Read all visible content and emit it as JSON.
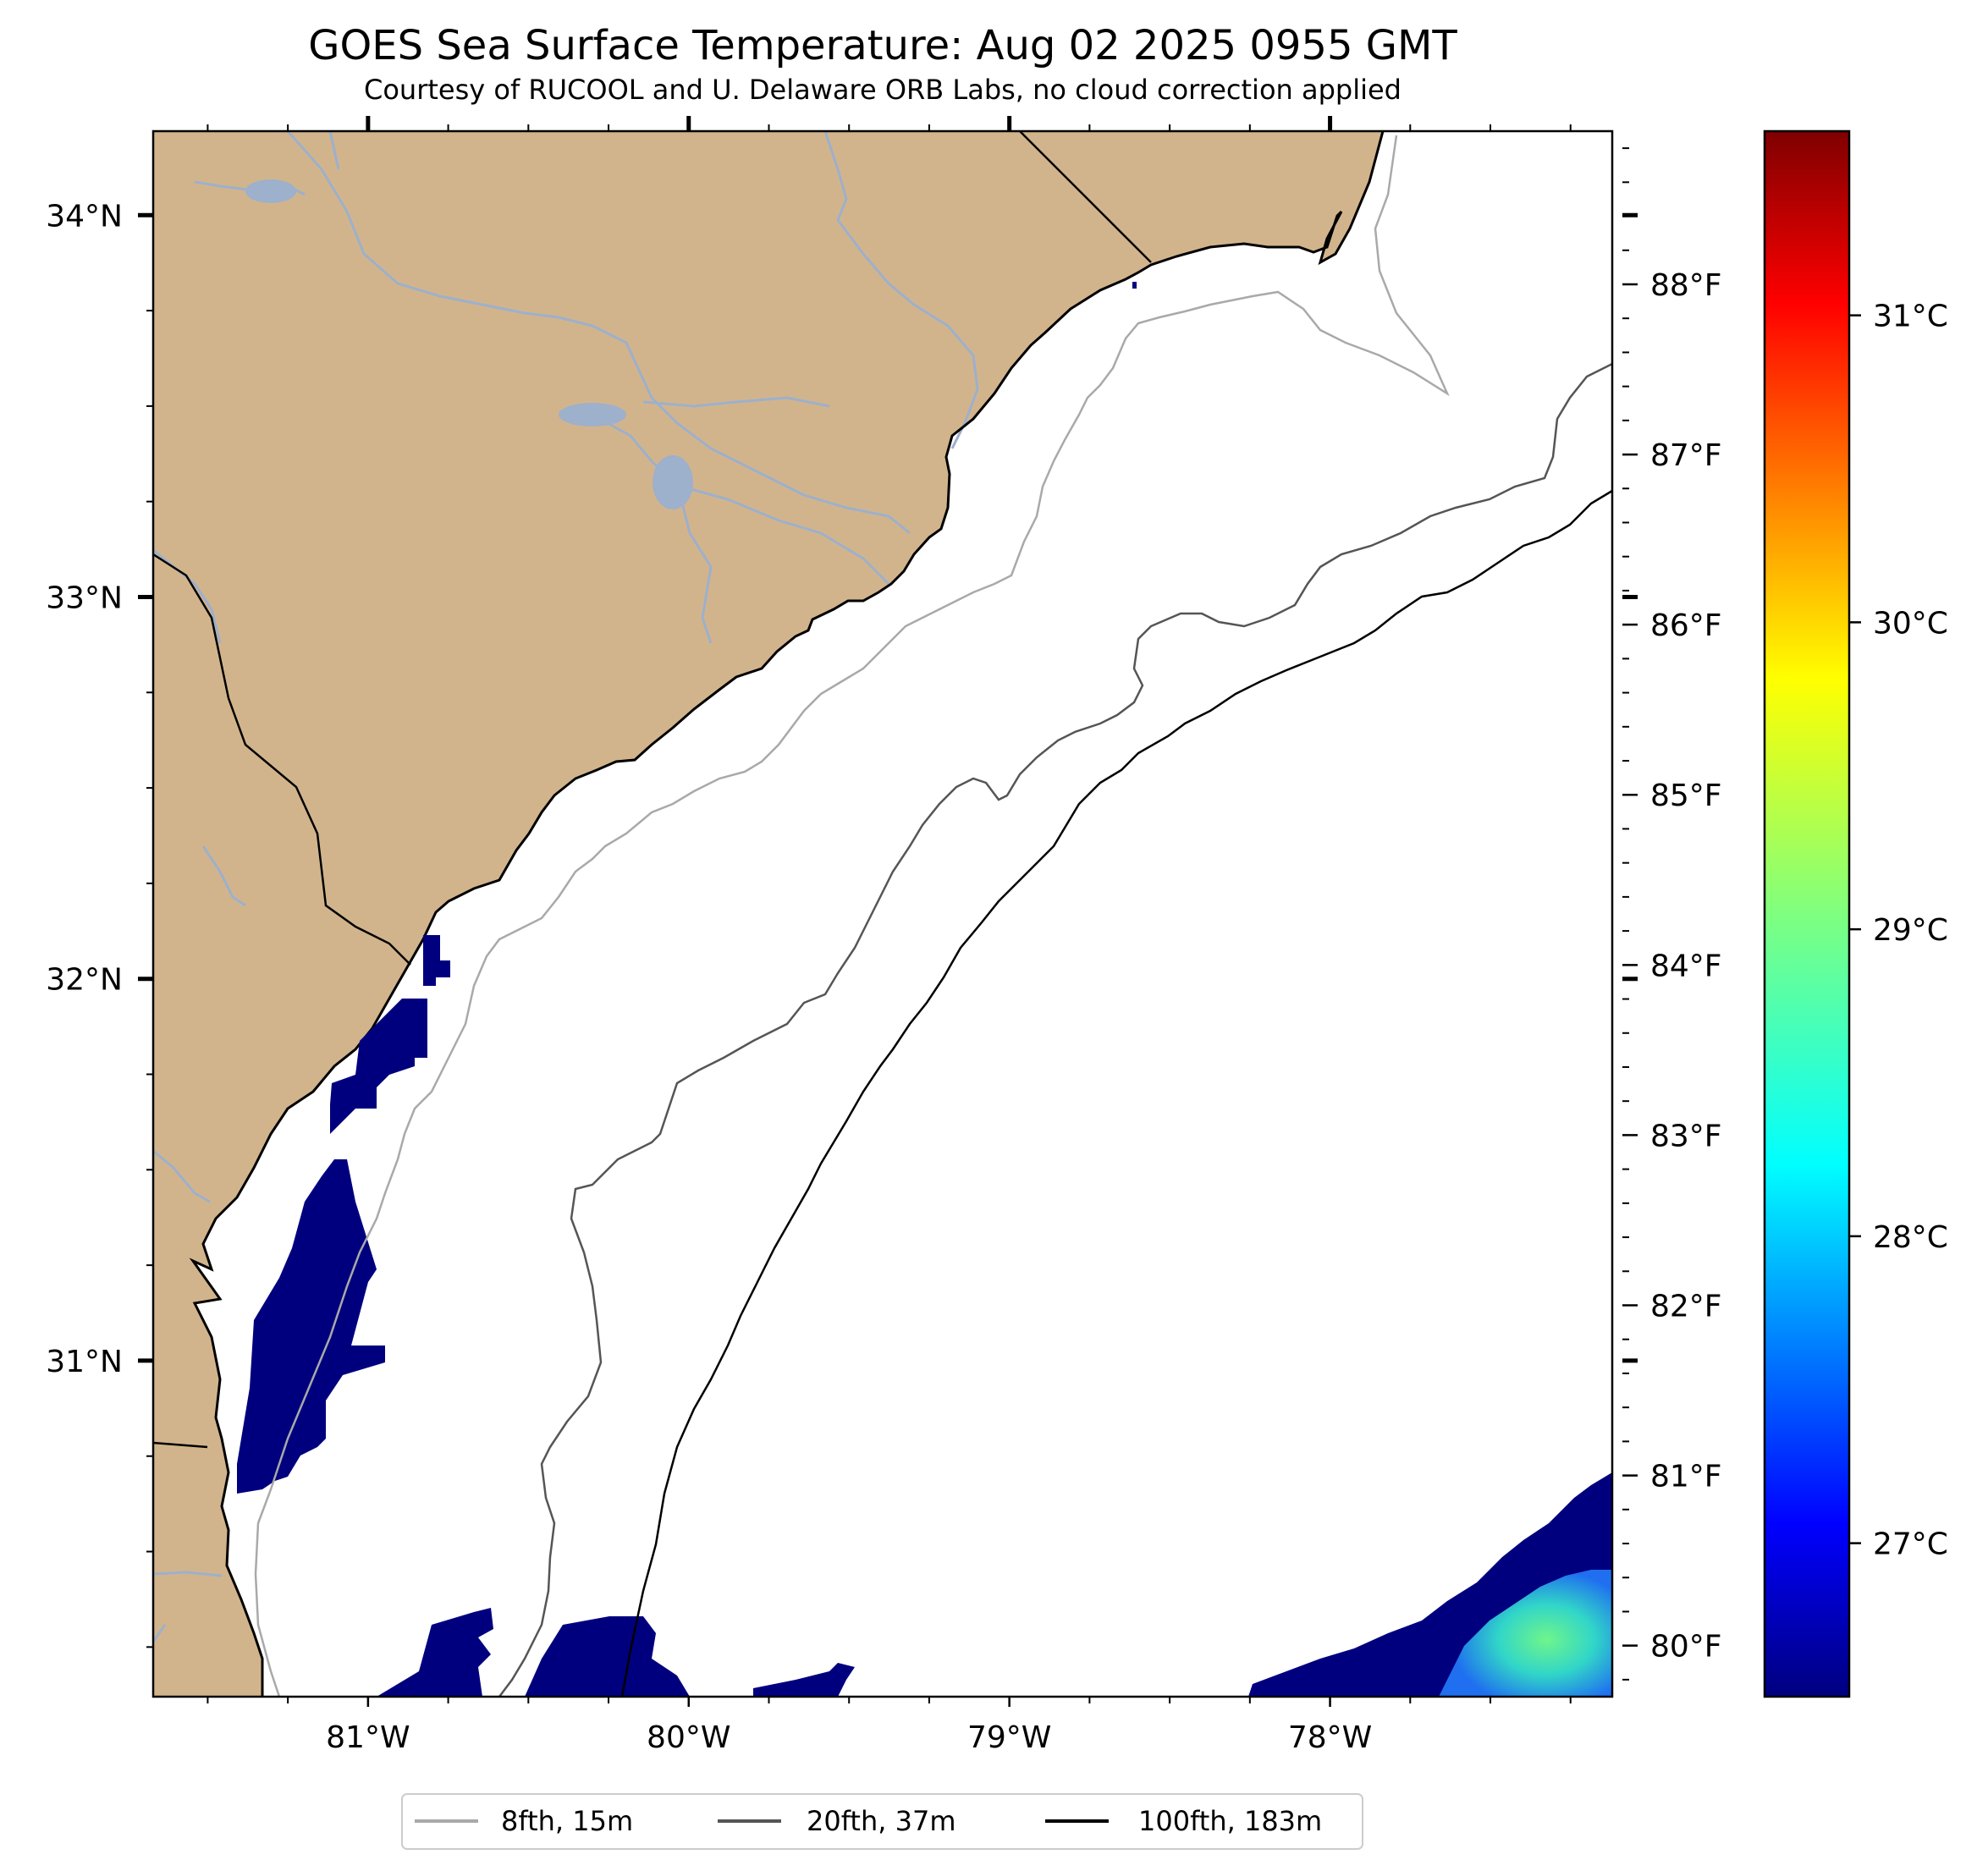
{
  "title": "GOES Sea Surface Temperature: Aug 02 2025 0955 GMT",
  "subtitle": "Courtesy of RUCOOL and U. Delaware ORB Labs, no cloud correction applied",
  "map": {
    "lon_range": [
      -81.67,
      -77.12
    ],
    "lat_range": [
      30.12,
      34.22
    ],
    "land_color": "#d2b48c",
    "ocean_color": "#ffffff",
    "river_color": "#9db0cc",
    "cold_sst_color": "#00007f",
    "lon_ticks": [
      {
        "value": -81,
        "label": "81°W"
      },
      {
        "value": -80,
        "label": "80°W"
      },
      {
        "value": -79,
        "label": "79°W"
      },
      {
        "value": -78,
        "label": "78°W"
      }
    ],
    "lat_ticks": [
      {
        "value": 34,
        "label": "34°N"
      },
      {
        "value": 33,
        "label": "33°N"
      },
      {
        "value": 32,
        "label": "32°N"
      },
      {
        "value": 31,
        "label": "31°N"
      }
    ],
    "fahrenheit_axis": {
      "min": 79.7,
      "max": 88.9,
      "ticks": [
        {
          "value": 88,
          "label": "88°F"
        },
        {
          "value": 87,
          "label": "87°F"
        },
        {
          "value": 86,
          "label": "86°F"
        },
        {
          "value": 85,
          "label": "85°F"
        },
        {
          "value": 84,
          "label": "84°F"
        },
        {
          "value": 83,
          "label": "83°F"
        },
        {
          "value": 82,
          "label": "82°F"
        },
        {
          "value": 81,
          "label": "81°F"
        },
        {
          "value": 80,
          "label": "80°F"
        }
      ]
    }
  },
  "colorbar": {
    "colormap": "jet",
    "min": 26.5,
    "max": 31.6,
    "ticks": [
      {
        "value": 31,
        "label": "31°C"
      },
      {
        "value": 30,
        "label": "30°C"
      },
      {
        "value": 29,
        "label": "29°C"
      },
      {
        "value": 28,
        "label": "28°C"
      },
      {
        "value": 27,
        "label": "27°C"
      }
    ]
  },
  "legend": {
    "placement": "bottom-center",
    "items": [
      {
        "label": "8fth, 15m",
        "color": "#a9a9a9"
      },
      {
        "label": "20fth, 37m",
        "color": "#555555"
      },
      {
        "label": "100fth, 183m",
        "color": "#000000"
      }
    ]
  }
}
